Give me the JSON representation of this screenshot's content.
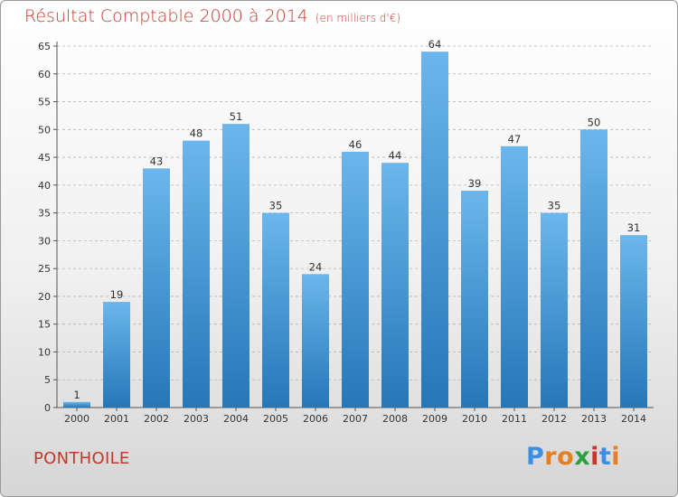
{
  "header": {
    "title": "Résultat Comptable 2000 à 2014",
    "subtitle": "(en milliers d'€)"
  },
  "footer": {
    "commune": "PONTHOILE",
    "logo_text": "Proxiti"
  },
  "colors": {
    "title": "#c0392b",
    "bar_top": "#6bb6ec",
    "bar_bottom": "#2577b8",
    "logo_letters": [
      "#3a8ee6",
      "#e67e22",
      "#e67e22",
      "#2e9e3e",
      "#c0392b",
      "#3a8ee6",
      "#e67e22"
    ]
  },
  "chart_data": {
    "type": "bar",
    "title": "Résultat Comptable 2000 à 2014",
    "xlabel": "",
    "ylabel": "",
    "ylim": [
      0,
      65
    ],
    "yticks": [
      0,
      5,
      10,
      15,
      20,
      25,
      30,
      35,
      40,
      45,
      50,
      55,
      60,
      65
    ],
    "grid": true,
    "categories": [
      "2000",
      "2001",
      "2002",
      "2003",
      "2004",
      "2005",
      "2006",
      "2007",
      "2008",
      "2009",
      "2010",
      "2011",
      "2012",
      "2013",
      "2014"
    ],
    "values": [
      1,
      19,
      43,
      48,
      51,
      35,
      24,
      46,
      44,
      64,
      39,
      47,
      35,
      50,
      31
    ]
  }
}
